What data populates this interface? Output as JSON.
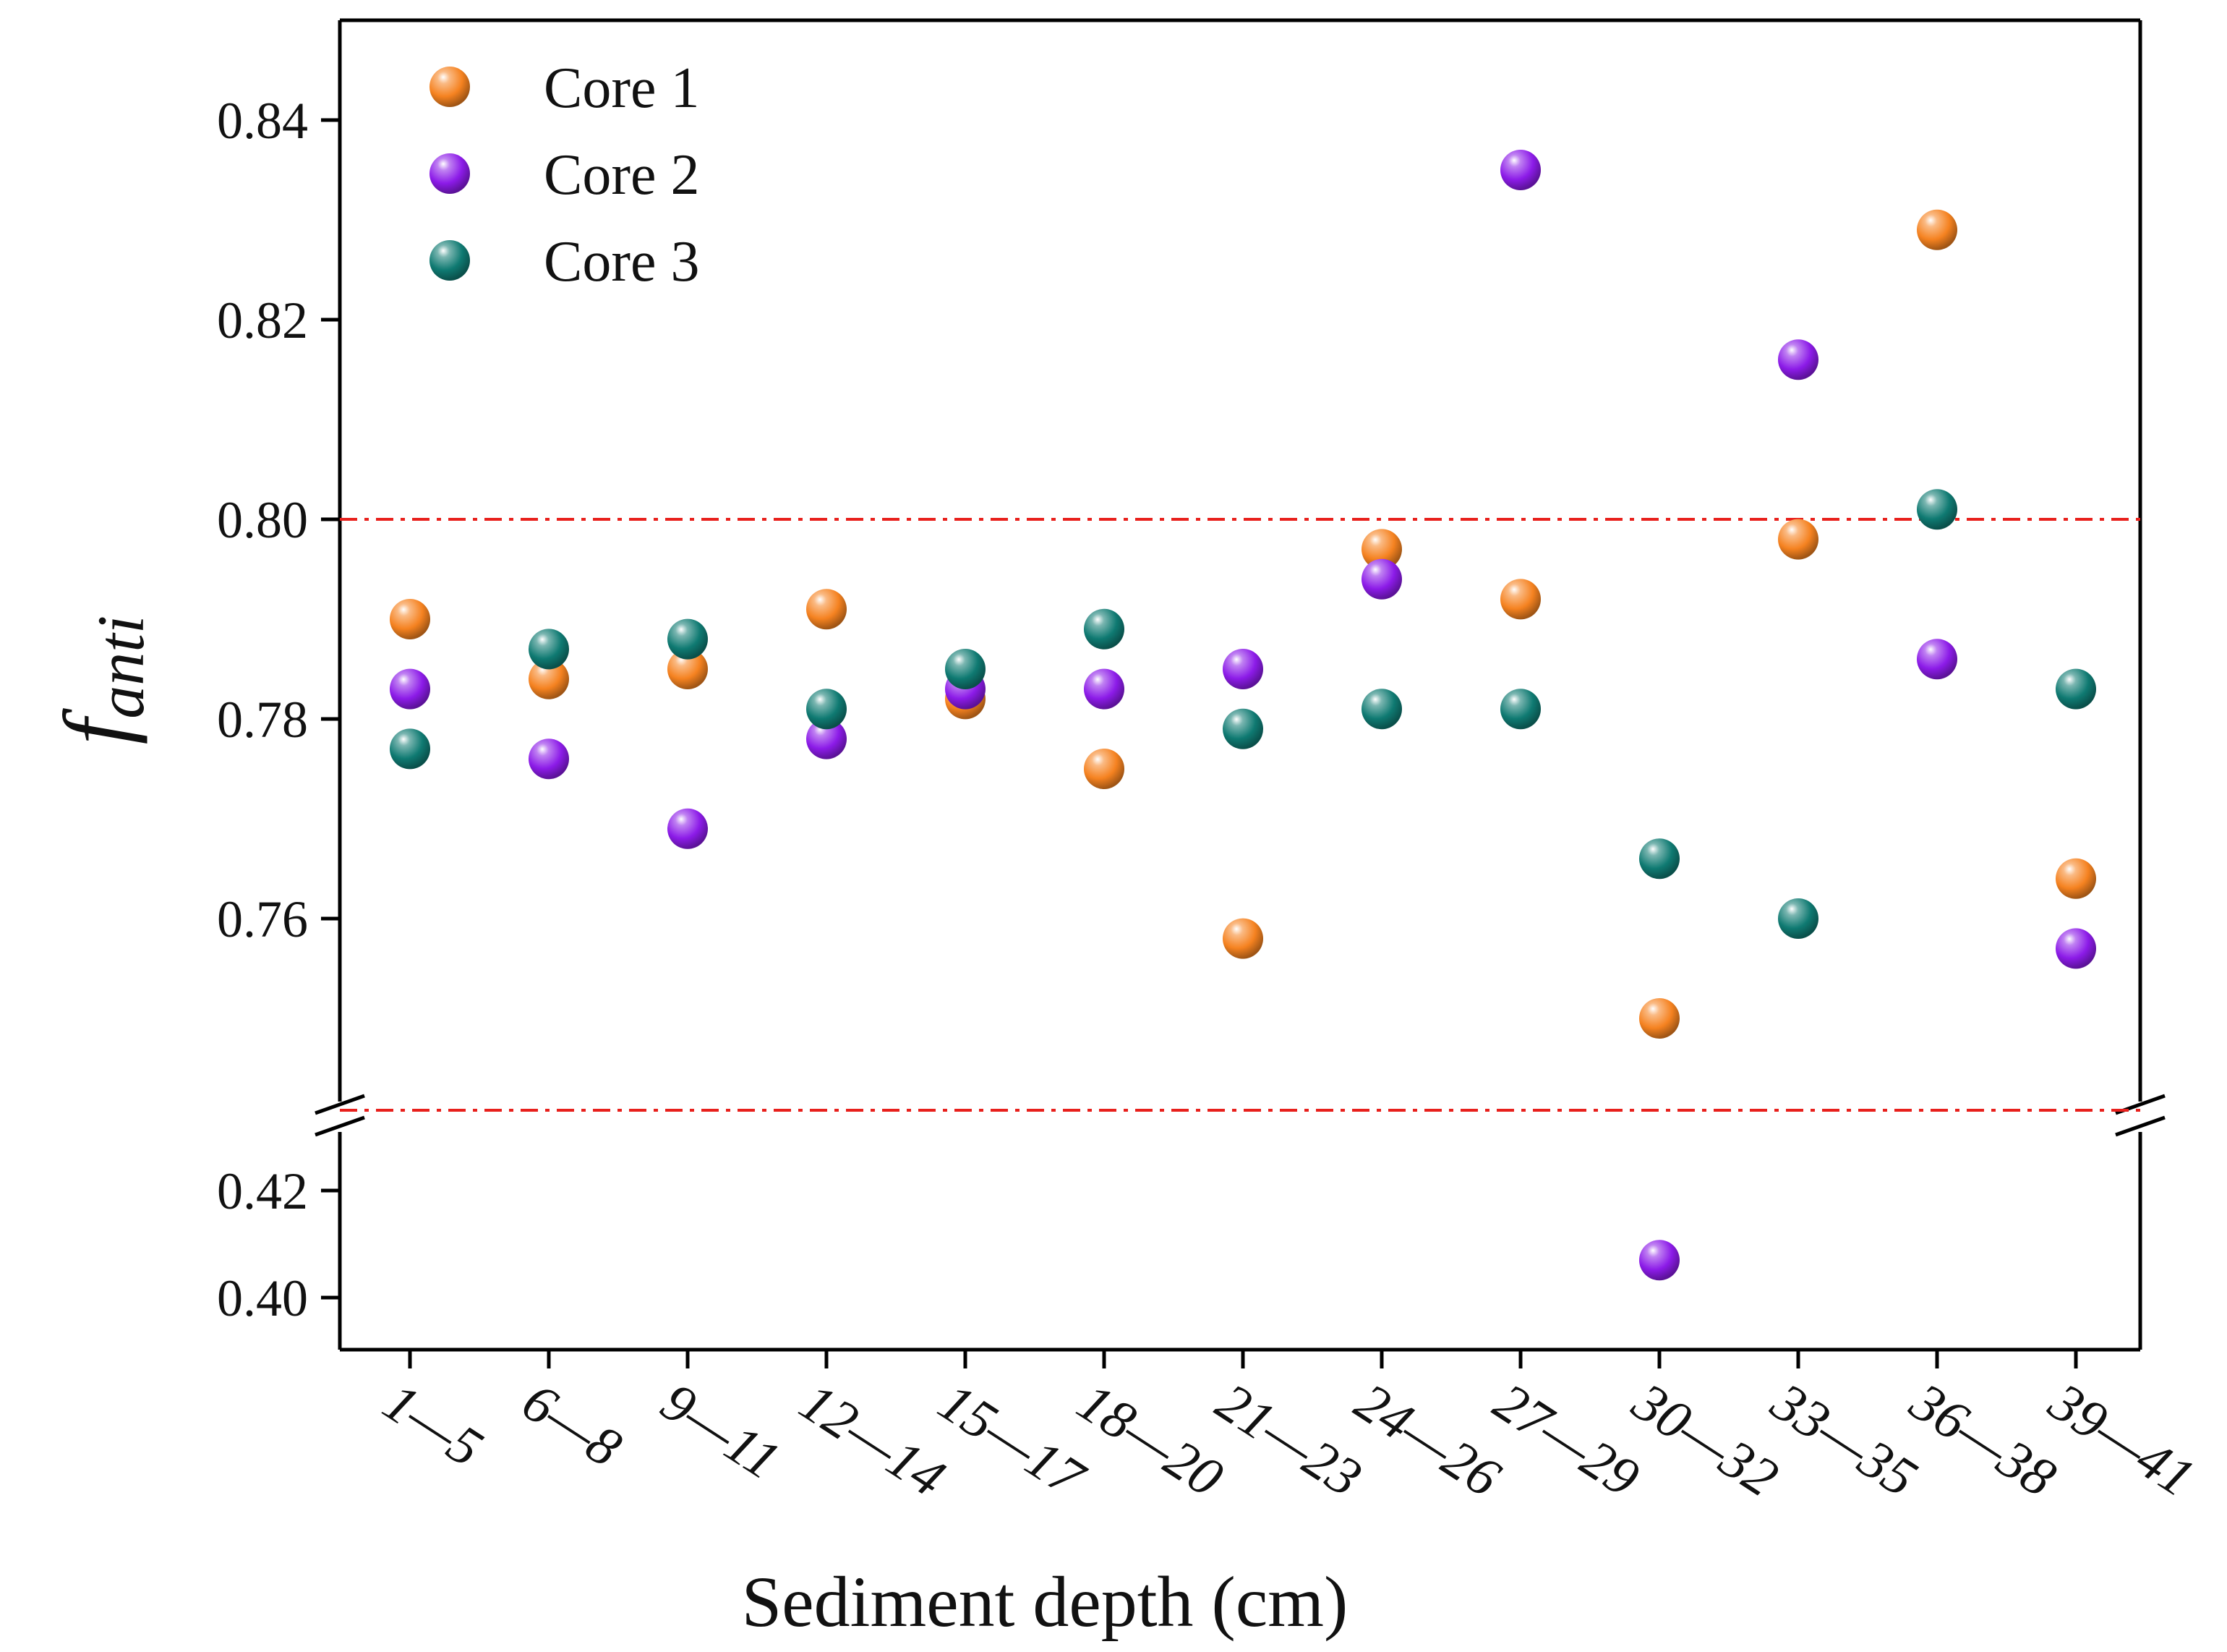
{
  "chart_data": {
    "type": "scatter",
    "title": "",
    "xlabel": "Sediment depth (cm)",
    "ylabel_main": "f",
    "ylabel_sub": "anti",
    "categories": [
      "1—5",
      "6—8",
      "9—11",
      "12—14",
      "15—17",
      "18—20",
      "21—23",
      "24—26",
      "27—29",
      "30—32",
      "33—35",
      "36—38",
      "39—41"
    ],
    "broken_axis": true,
    "upper_ylim": [
      0.74,
      0.85
    ],
    "lower_ylim": [
      0.39,
      0.43
    ],
    "upper_yticks": [
      "0.76",
      "0.78",
      "0.80",
      "0.82",
      "0.84"
    ],
    "lower_yticks": [
      "0.40",
      "0.42"
    ],
    "reference_line": 0.8,
    "legend_position": "top-left",
    "series": [
      {
        "name": "Core 1",
        "color": "#f58220",
        "values": [
          0.79,
          0.784,
          0.785,
          0.791,
          0.782,
          0.775,
          0.758,
          0.797,
          0.792,
          0.75,
          0.798,
          0.829,
          0.764
        ]
      },
      {
        "name": "Core 2",
        "color": "#8c1be8",
        "values": [
          0.783,
          0.776,
          0.769,
          0.778,
          0.783,
          0.783,
          0.785,
          0.794,
          0.835,
          0.407,
          0.816,
          0.786,
          0.757
        ]
      },
      {
        "name": "Core 3",
        "color": "#0f7a72",
        "values": [
          0.777,
          0.787,
          0.788,
          0.781,
          0.785,
          0.789,
          0.779,
          0.781,
          0.781,
          0.766,
          0.76,
          0.801,
          0.783
        ]
      }
    ]
  }
}
